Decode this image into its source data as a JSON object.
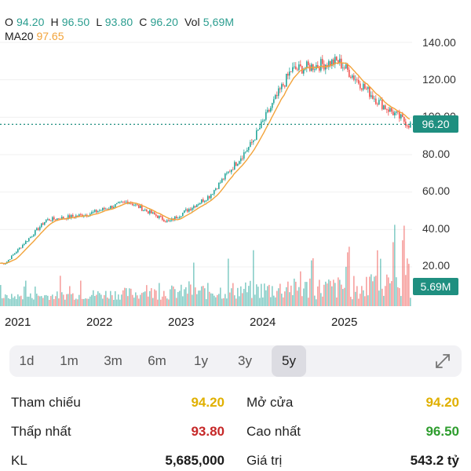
{
  "ohlc": {
    "o_label": "O",
    "o": "94.20",
    "h_label": "H",
    "h": "96.50",
    "l_label": "L",
    "l": "93.80",
    "c_label": "C",
    "c": "96.20",
    "vol_label": "Vol",
    "vol": "5,69M"
  },
  "ma": {
    "label": "MA20",
    "value": "97.65"
  },
  "axis": {
    "y_ticks": [
      "140.00",
      "120.00",
      "100.00",
      "80.00",
      "60.00",
      "40.00",
      "20.00"
    ],
    "x_ticks": [
      "2021",
      "2022",
      "2023",
      "2024",
      "2025"
    ]
  },
  "tags": {
    "price": "96.20",
    "volume": "5.69M"
  },
  "tabs": [
    "1d",
    "1m",
    "3m",
    "6m",
    "1y",
    "3y",
    "5y"
  ],
  "active_tab": "5y",
  "stats": {
    "ref_label": "Tham chiếu",
    "ref_value": "94.20",
    "open_label": "Mở cửa",
    "open_value": "94.20",
    "low_label": "Thấp nhất",
    "low_value": "93.80",
    "high_label": "Cao nhất",
    "high_value": "96.50",
    "kl_label": "KL",
    "kl_value": "5,685,000",
    "gt_label": "Giá trị",
    "gt_value": "543.2 tỷ"
  },
  "colors": {
    "up": "#26a69a",
    "down": "#ef5350",
    "ma": "#f2a33a",
    "ref": "#e0b000",
    "low": "#c62828",
    "high": "#2e9d2e",
    "tag": "#1f8f80"
  },
  "chart_data": {
    "type": "line",
    "x": [
      "2021",
      "2021.5",
      "2022",
      "2022.5",
      "2023",
      "2023.5",
      "2024",
      "2024.5",
      "2025",
      "2025.5",
      "2025.8"
    ],
    "series": [
      {
        "name": "Close",
        "values": [
          22,
          45,
          48,
          55,
          44,
          58,
          85,
          125,
          130,
          108,
          96.2
        ]
      }
    ],
    "ylim": [
      10,
      148
    ]
  }
}
